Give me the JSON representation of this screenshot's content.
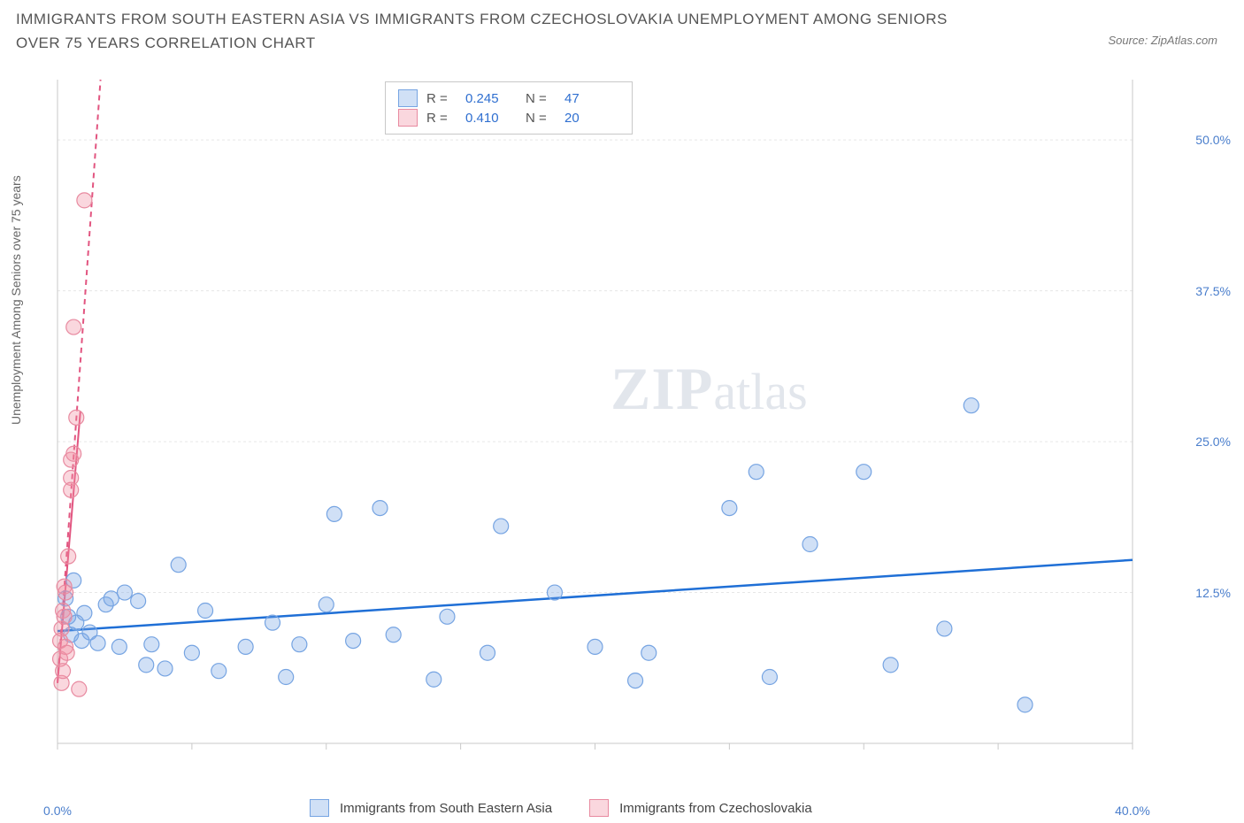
{
  "title": "IMMIGRANTS FROM SOUTH EASTERN ASIA VS IMMIGRANTS FROM CZECHOSLOVAKIA UNEMPLOYMENT AMONG SENIORS OVER 75 YEARS CORRELATION CHART",
  "source": "Source: ZipAtlas.com",
  "y_axis_label": "Unemployment Among Seniors over 75 years",
  "watermark_zip": "ZIP",
  "watermark_atlas": "atlas",
  "chart": {
    "type": "scatter",
    "xlim": [
      0,
      40
    ],
    "ylim": [
      0,
      55
    ],
    "x_ticks": [
      0,
      5,
      10,
      15,
      20,
      25,
      30,
      35,
      40
    ],
    "x_tick_labels_shown": {
      "0": "0.0%",
      "40": "40.0%"
    },
    "y_ticks": [
      12.5,
      25.0,
      37.5,
      50.0
    ],
    "y_tick_labels": [
      "12.5%",
      "25.0%",
      "37.5%",
      "50.0%"
    ],
    "grid_color": "#e6e6e6",
    "axis_color": "#c9c9c9",
    "background": "#ffffff",
    "series": [
      {
        "name": "Immigrants from South Eastern Asia",
        "color_fill": "rgba(120,165,230,0.35)",
        "color_stroke": "#76a4e2",
        "R": "0.245",
        "N": "47",
        "trend": {
          "x1": 0,
          "y1": 9.3,
          "x2": 40,
          "y2": 15.2,
          "color": "#1f6fd6",
          "width": 2.5,
          "dash": "none"
        },
        "points": [
          [
            0.3,
            12.0
          ],
          [
            0.4,
            10.5
          ],
          [
            0.5,
            9.0
          ],
          [
            0.6,
            13.5
          ],
          [
            0.7,
            10.0
          ],
          [
            0.9,
            8.5
          ],
          [
            1.0,
            10.8
          ],
          [
            1.2,
            9.2
          ],
          [
            1.5,
            8.3
          ],
          [
            1.8,
            11.5
          ],
          [
            2.0,
            12.0
          ],
          [
            2.3,
            8.0
          ],
          [
            2.5,
            12.5
          ],
          [
            3.0,
            11.8
          ],
          [
            3.3,
            6.5
          ],
          [
            3.5,
            8.2
          ],
          [
            4.0,
            6.2
          ],
          [
            4.5,
            14.8
          ],
          [
            5.0,
            7.5
          ],
          [
            5.5,
            11.0
          ],
          [
            6.0,
            6.0
          ],
          [
            7.0,
            8.0
          ],
          [
            8.0,
            10.0
          ],
          [
            8.5,
            5.5
          ],
          [
            9.0,
            8.2
          ],
          [
            10.0,
            11.5
          ],
          [
            10.3,
            19.0
          ],
          [
            11.0,
            8.5
          ],
          [
            12.0,
            19.5
          ],
          [
            12.5,
            9.0
          ],
          [
            14.0,
            5.3
          ],
          [
            14.5,
            10.5
          ],
          [
            16.0,
            7.5
          ],
          [
            16.5,
            18.0
          ],
          [
            18.5,
            12.5
          ],
          [
            20.0,
            8.0
          ],
          [
            21.5,
            5.2
          ],
          [
            22.0,
            7.5
          ],
          [
            25.0,
            19.5
          ],
          [
            26.0,
            22.5
          ],
          [
            26.5,
            5.5
          ],
          [
            28.0,
            16.5
          ],
          [
            30.0,
            22.5
          ],
          [
            31.0,
            6.5
          ],
          [
            33.0,
            9.5
          ],
          [
            34.0,
            28.0
          ],
          [
            36.0,
            3.2
          ]
        ]
      },
      {
        "name": "Immigrants from Czechoslovakia",
        "color_fill": "rgba(240,140,160,0.35)",
        "color_stroke": "#e88aa0",
        "R": "0.410",
        "N": "20",
        "trend": {
          "x1": 0,
          "y1": 5.0,
          "x2": 1.6,
          "y2": 55.0,
          "color": "#e25580",
          "width": 2,
          "dash": "6,5"
        },
        "trend_solid": {
          "x1": 0,
          "y1": 5.0,
          "x2": 0.85,
          "y2": 27.5,
          "color": "#e25580",
          "width": 2
        },
        "points": [
          [
            0.1,
            7.0
          ],
          [
            0.1,
            8.5
          ],
          [
            0.15,
            5.0
          ],
          [
            0.15,
            9.5
          ],
          [
            0.2,
            6.0
          ],
          [
            0.2,
            11.0
          ],
          [
            0.25,
            10.5
          ],
          [
            0.25,
            13.0
          ],
          [
            0.3,
            8.0
          ],
          [
            0.3,
            12.5
          ],
          [
            0.35,
            7.5
          ],
          [
            0.4,
            15.5
          ],
          [
            0.5,
            22.0
          ],
          [
            0.5,
            23.5
          ],
          [
            0.5,
            21.0
          ],
          [
            0.6,
            24.0
          ],
          [
            0.7,
            27.0
          ],
          [
            0.6,
            34.5
          ],
          [
            1.0,
            45.0
          ],
          [
            0.8,
            4.5
          ]
        ]
      }
    ]
  },
  "legend_labels": {
    "R": "R =",
    "N": "N ="
  }
}
